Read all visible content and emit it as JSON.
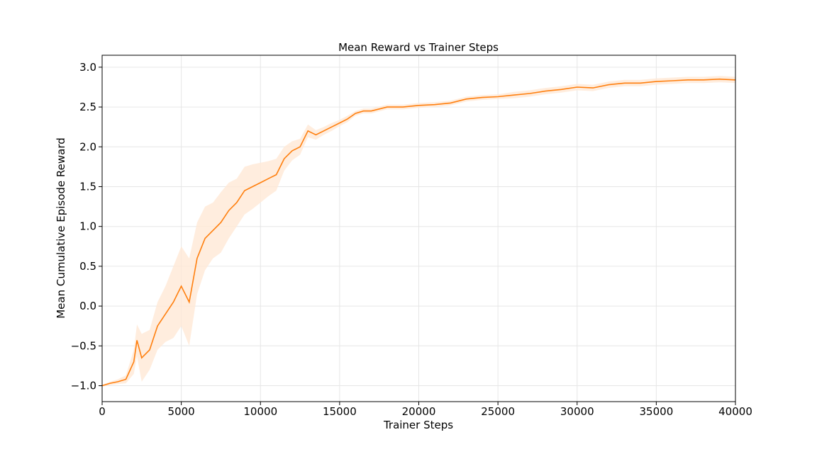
{
  "chart_data": {
    "type": "line",
    "title": "Mean Reward vs Trainer Steps",
    "xlabel": "Trainer Steps",
    "ylabel": "Mean Cumulative Episode Reward",
    "xlim": [
      0,
      40000
    ],
    "ylim": [
      -1.2,
      3.15
    ],
    "xticks": [
      0,
      5000,
      10000,
      15000,
      20000,
      25000,
      30000,
      35000,
      40000
    ],
    "yticks": [
      -1.0,
      -0.5,
      0.0,
      0.5,
      1.0,
      1.5,
      2.0,
      2.5,
      3.0
    ],
    "grid": true,
    "colors": {
      "line": "#ff7f0e",
      "band": "#ffe9d6"
    },
    "series": [
      {
        "x": [
          0,
          500,
          1000,
          1500,
          2000,
          2200,
          2500,
          3000,
          3500,
          4000,
          4500,
          5000,
          5500,
          6000,
          6500,
          7000,
          7500,
          8000,
          8500,
          9000,
          9500,
          10000,
          10500,
          11000,
          11500,
          12000,
          12500,
          13000,
          13500,
          14000,
          14500,
          15000,
          15500,
          16000,
          16500,
          17000,
          18000,
          19000,
          20000,
          21000,
          22000,
          23000,
          24000,
          25000,
          26000,
          27000,
          28000,
          29000,
          30000,
          31000,
          32000,
          33000,
          34000,
          35000,
          36000,
          37000,
          38000,
          39000,
          40000
        ],
        "y": [
          -1.0,
          -0.97,
          -0.95,
          -0.92,
          -0.7,
          -0.43,
          -0.65,
          -0.55,
          -0.25,
          -0.1,
          0.05,
          0.25,
          0.05,
          0.6,
          0.85,
          0.95,
          1.05,
          1.2,
          1.3,
          1.45,
          1.5,
          1.55,
          1.6,
          1.65,
          1.85,
          1.95,
          2.0,
          2.2,
          2.15,
          2.2,
          2.25,
          2.3,
          2.35,
          2.42,
          2.45,
          2.45,
          2.5,
          2.5,
          2.52,
          2.53,
          2.55,
          2.6,
          2.62,
          2.63,
          2.65,
          2.67,
          2.7,
          2.72,
          2.75,
          2.74,
          2.78,
          2.8,
          2.8,
          2.82,
          2.83,
          2.84,
          2.84,
          2.85,
          2.84
        ],
        "band": [
          0.01,
          0.02,
          0.03,
          0.05,
          0.15,
          0.2,
          0.3,
          0.25,
          0.3,
          0.35,
          0.45,
          0.5,
          0.55,
          0.45,
          0.4,
          0.35,
          0.38,
          0.35,
          0.3,
          0.3,
          0.28,
          0.25,
          0.22,
          0.2,
          0.15,
          0.12,
          0.1,
          0.08,
          0.06,
          0.05,
          0.05,
          0.04,
          0.04,
          0.03,
          0.03,
          0.03,
          0.03,
          0.03,
          0.03,
          0.03,
          0.03,
          0.03,
          0.03,
          0.03,
          0.04,
          0.04,
          0.04,
          0.04,
          0.04,
          0.04,
          0.04,
          0.04,
          0.04,
          0.04,
          0.04,
          0.04,
          0.04,
          0.04,
          0.04
        ]
      }
    ]
  }
}
